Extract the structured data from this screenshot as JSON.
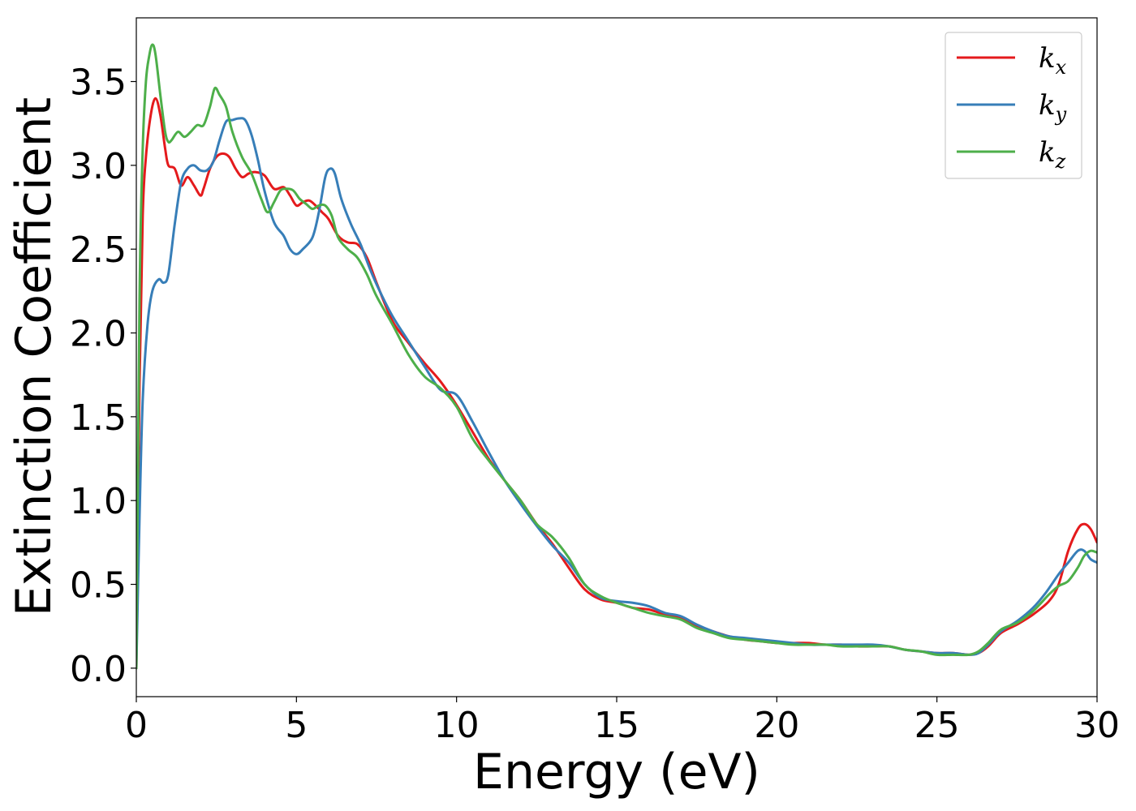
{
  "chart_data": {
    "type": "line",
    "title": "",
    "xlabel": "Energy (eV)",
    "ylabel": "Extinction Coefficient",
    "xlim": [
      0,
      30
    ],
    "ylim": [
      -0.17,
      3.88
    ],
    "xticks": [
      0,
      5,
      10,
      15,
      20,
      25,
      30
    ],
    "xtick_labels": [
      "0",
      "5",
      "10",
      "15",
      "20",
      "25",
      "30"
    ],
    "yticks": [
      0.0,
      0.5,
      1.0,
      1.5,
      2.0,
      2.5,
      3.0,
      3.5
    ],
    "ytick_labels": [
      "0.0",
      "0.5",
      "1.0",
      "1.5",
      "2.0",
      "2.5",
      "3.0",
      "3.5"
    ],
    "grid": false,
    "legend_position": "top-right",
    "series": [
      {
        "name": "kx",
        "label_base": "k",
        "label_sub": "x",
        "color": "#e41a1c",
        "x": [
          0,
          0.1,
          0.2,
          0.3,
          0.45,
          0.6,
          0.75,
          0.9,
          1.0,
          1.2,
          1.4,
          1.6,
          1.8,
          2.0,
          2.1,
          2.3,
          2.5,
          2.7,
          2.9,
          3.1,
          3.3,
          3.5,
          3.7,
          4.0,
          4.3,
          4.6,
          4.8,
          5.0,
          5.2,
          5.4,
          5.6,
          5.8,
          6.0,
          6.3,
          6.6,
          6.9,
          7.2,
          7.5,
          8.0,
          8.5,
          9.0,
          9.5,
          10.0,
          10.5,
          11.0,
          11.5,
          12.0,
          12.5,
          13.0,
          13.5,
          14.0,
          14.5,
          15.0,
          15.5,
          16.0,
          16.5,
          17.0,
          17.5,
          18.0,
          18.5,
          19.0,
          19.5,
          20.0,
          20.5,
          21.0,
          21.5,
          22.0,
          22.5,
          23.0,
          23.5,
          24.0,
          24.5,
          25.0,
          25.5,
          26.0,
          26.3,
          26.6,
          27.0,
          27.5,
          28.0,
          28.5,
          28.8,
          29.1,
          29.4,
          29.6,
          29.8,
          30.0
        ],
        "y": [
          0.0,
          1.7,
          2.7,
          3.05,
          3.3,
          3.4,
          3.3,
          3.1,
          3.0,
          2.98,
          2.88,
          2.93,
          2.88,
          2.82,
          2.86,
          2.98,
          3.05,
          3.07,
          3.05,
          2.98,
          2.93,
          2.95,
          2.96,
          2.94,
          2.86,
          2.87,
          2.82,
          2.76,
          2.78,
          2.79,
          2.76,
          2.72,
          2.68,
          2.58,
          2.54,
          2.53,
          2.45,
          2.3,
          2.07,
          1.94,
          1.82,
          1.71,
          1.57,
          1.41,
          1.25,
          1.12,
          1.0,
          0.86,
          0.74,
          0.6,
          0.47,
          0.41,
          0.39,
          0.36,
          0.35,
          0.32,
          0.3,
          0.25,
          0.22,
          0.19,
          0.17,
          0.16,
          0.15,
          0.15,
          0.15,
          0.14,
          0.14,
          0.13,
          0.13,
          0.13,
          0.11,
          0.1,
          0.09,
          0.09,
          0.08,
          0.09,
          0.13,
          0.21,
          0.26,
          0.32,
          0.4,
          0.5,
          0.7,
          0.83,
          0.86,
          0.83,
          0.75
        ]
      },
      {
        "name": "ky",
        "label_base": "k",
        "label_sub": "y",
        "color": "#377eb8",
        "x": [
          0,
          0.1,
          0.2,
          0.35,
          0.5,
          0.7,
          0.85,
          1.0,
          1.2,
          1.4,
          1.6,
          1.8,
          2.0,
          2.2,
          2.4,
          2.6,
          2.8,
          3.0,
          3.2,
          3.4,
          3.6,
          3.8,
          4.0,
          4.3,
          4.6,
          4.8,
          5.0,
          5.2,
          5.5,
          5.7,
          5.9,
          6.05,
          6.2,
          6.4,
          6.7,
          7.0,
          7.3,
          7.6,
          8.0,
          8.5,
          9.0,
          9.5,
          10.0,
          10.5,
          11.0,
          11.5,
          12.0,
          12.5,
          13.0,
          13.5,
          14.0,
          14.5,
          15.0,
          15.5,
          16.0,
          16.5,
          17.0,
          17.5,
          18.0,
          18.5,
          19.0,
          19.5,
          20.0,
          20.5,
          21.0,
          21.5,
          22.0,
          22.5,
          23.0,
          23.5,
          24.0,
          24.5,
          25.0,
          25.5,
          26.0,
          26.3,
          26.6,
          27.0,
          27.5,
          28.0,
          28.4,
          28.8,
          29.1,
          29.4,
          29.6,
          29.8,
          30.0
        ],
        "y": [
          0.0,
          0.9,
          1.6,
          2.05,
          2.25,
          2.32,
          2.3,
          2.35,
          2.65,
          2.9,
          2.98,
          3.0,
          2.97,
          2.97,
          3.02,
          3.15,
          3.26,
          3.27,
          3.28,
          3.27,
          3.18,
          3.03,
          2.85,
          2.66,
          2.58,
          2.5,
          2.47,
          2.5,
          2.57,
          2.72,
          2.93,
          2.98,
          2.95,
          2.8,
          2.65,
          2.53,
          2.38,
          2.25,
          2.1,
          1.95,
          1.8,
          1.66,
          1.63,
          1.47,
          1.29,
          1.12,
          0.98,
          0.85,
          0.73,
          0.63,
          0.5,
          0.42,
          0.4,
          0.39,
          0.37,
          0.33,
          0.31,
          0.26,
          0.22,
          0.19,
          0.18,
          0.17,
          0.16,
          0.15,
          0.14,
          0.14,
          0.14,
          0.14,
          0.14,
          0.13,
          0.11,
          0.1,
          0.09,
          0.09,
          0.08,
          0.09,
          0.14,
          0.22,
          0.28,
          0.36,
          0.45,
          0.56,
          0.63,
          0.7,
          0.7,
          0.65,
          0.63
        ]
      },
      {
        "name": "kz",
        "label_base": "k",
        "label_sub": "z",
        "color": "#4daf4a",
        "x": [
          0,
          0.1,
          0.2,
          0.3,
          0.4,
          0.5,
          0.6,
          0.75,
          0.9,
          1.0,
          1.1,
          1.3,
          1.5,
          1.7,
          1.9,
          2.1,
          2.3,
          2.45,
          2.6,
          2.8,
          3.0,
          3.3,
          3.6,
          3.9,
          4.1,
          4.3,
          4.5,
          4.7,
          4.9,
          5.1,
          5.3,
          5.5,
          5.7,
          5.9,
          6.1,
          6.3,
          6.6,
          6.9,
          7.2,
          7.5,
          8.0,
          8.5,
          9.0,
          9.5,
          10.0,
          10.5,
          11.0,
          11.5,
          12.0,
          12.5,
          13.0,
          13.5,
          14.0,
          14.5,
          15.0,
          15.5,
          16.0,
          16.5,
          17.0,
          17.5,
          18.0,
          18.5,
          19.0,
          19.5,
          20.0,
          20.5,
          21.0,
          21.5,
          22.0,
          22.5,
          23.0,
          23.5,
          24.0,
          24.5,
          25.0,
          25.5,
          26.0,
          26.3,
          26.6,
          27.0,
          27.5,
          28.0,
          28.5,
          28.8,
          29.1,
          29.4,
          29.6,
          29.8,
          30.0
        ],
        "y": [
          0.0,
          2.2,
          3.1,
          3.5,
          3.65,
          3.72,
          3.66,
          3.42,
          3.2,
          3.14,
          3.15,
          3.2,
          3.17,
          3.2,
          3.24,
          3.24,
          3.35,
          3.46,
          3.42,
          3.35,
          3.2,
          3.05,
          2.95,
          2.8,
          2.72,
          2.78,
          2.85,
          2.86,
          2.85,
          2.8,
          2.77,
          2.74,
          2.76,
          2.76,
          2.7,
          2.57,
          2.5,
          2.45,
          2.35,
          2.22,
          2.05,
          1.87,
          1.74,
          1.67,
          1.56,
          1.37,
          1.24,
          1.12,
          1.0,
          0.86,
          0.78,
          0.66,
          0.5,
          0.43,
          0.39,
          0.36,
          0.33,
          0.31,
          0.29,
          0.24,
          0.21,
          0.18,
          0.17,
          0.16,
          0.15,
          0.14,
          0.14,
          0.14,
          0.13,
          0.13,
          0.13,
          0.13,
          0.11,
          0.1,
          0.08,
          0.08,
          0.08,
          0.1,
          0.15,
          0.23,
          0.27,
          0.34,
          0.44,
          0.49,
          0.52,
          0.6,
          0.67,
          0.7,
          0.69
        ]
      }
    ]
  }
}
